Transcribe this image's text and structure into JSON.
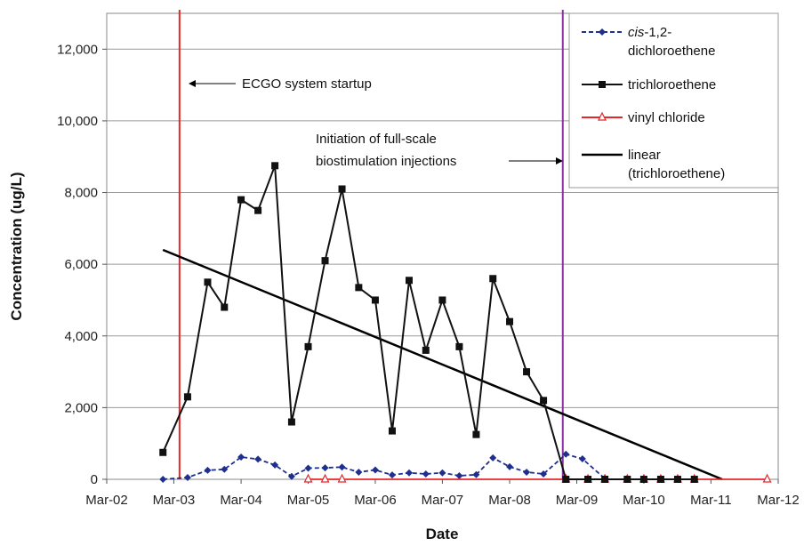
{
  "chart_data": {
    "type": "line",
    "xlabel": "Date",
    "ylabel": "Concentration (ug/L)",
    "ylim": [
      0,
      13000
    ],
    "y_ticks": [
      0,
      2000,
      4000,
      6000,
      8000,
      10000,
      12000
    ],
    "y_tick_labels": [
      "0",
      "2,000",
      "4,000",
      "6,000",
      "8,000",
      "10,000",
      "12,000"
    ],
    "xlim": [
      "2002-03-01",
      "2012-03-01"
    ],
    "x_tick_labels": [
      "Mar-02",
      "Mar-03",
      "Mar-04",
      "Mar-05",
      "Mar-06",
      "Mar-07",
      "Mar-08",
      "Mar-09",
      "Mar-10",
      "Mar-11",
      "Mar-12"
    ],
    "grid": "horizontal",
    "legend_position": "top-right",
    "series": [
      {
        "key": "dce",
        "name_prefix": "cis",
        "name_rest": "-1,2-",
        "name_line2": "dichloroethene",
        "color": "#1f2f8f",
        "line_style": "dashed",
        "marker": "diamond",
        "points": [
          [
            "2003-01-01",
            0
          ],
          [
            "2003-05-15",
            50
          ],
          [
            "2003-09-01",
            250
          ],
          [
            "2003-12-01",
            280
          ],
          [
            "2004-03-01",
            620
          ],
          [
            "2004-06-01",
            560
          ],
          [
            "2004-09-01",
            400
          ],
          [
            "2004-12-01",
            80
          ],
          [
            "2005-03-01",
            310
          ],
          [
            "2005-06-01",
            320
          ],
          [
            "2005-09-01",
            340
          ],
          [
            "2005-12-01",
            200
          ],
          [
            "2006-03-01",
            260
          ],
          [
            "2006-06-01",
            120
          ],
          [
            "2006-09-01",
            180
          ],
          [
            "2006-12-01",
            150
          ],
          [
            "2007-03-01",
            180
          ],
          [
            "2007-06-01",
            100
          ],
          [
            "2007-09-01",
            130
          ],
          [
            "2007-12-01",
            600
          ],
          [
            "2008-03-01",
            350
          ],
          [
            "2008-06-01",
            200
          ],
          [
            "2008-09-01",
            150
          ],
          [
            "2009-01-01",
            700
          ],
          [
            "2009-04-01",
            570
          ],
          [
            "2009-08-01",
            20
          ]
        ]
      },
      {
        "key": "tce",
        "name": "trichloroethene",
        "color": "#111111",
        "line_style": "solid",
        "marker": "square",
        "points": [
          [
            "2003-01-01",
            750
          ],
          [
            "2003-05-15",
            2300
          ],
          [
            "2003-09-01",
            5500
          ],
          [
            "2003-12-01",
            4800
          ],
          [
            "2004-03-01",
            7800
          ],
          [
            "2004-06-01",
            7500
          ],
          [
            "2004-09-01",
            8750
          ],
          [
            "2004-12-01",
            1600
          ],
          [
            "2005-03-01",
            3700
          ],
          [
            "2005-06-01",
            6100
          ],
          [
            "2005-09-01",
            8100
          ],
          [
            "2005-12-01",
            5350
          ],
          [
            "2006-03-01",
            5000
          ],
          [
            "2006-06-01",
            1350
          ],
          [
            "2006-09-01",
            5550
          ],
          [
            "2006-12-01",
            3600
          ],
          [
            "2007-03-01",
            5000
          ],
          [
            "2007-06-01",
            3700
          ],
          [
            "2007-09-01",
            1250
          ],
          [
            "2007-12-01",
            5600
          ],
          [
            "2008-03-01",
            4400
          ],
          [
            "2008-06-01",
            3000
          ],
          [
            "2008-09-01",
            2200
          ],
          [
            "2009-01-01",
            0
          ],
          [
            "2009-05-01",
            0
          ],
          [
            "2009-08-01",
            0
          ],
          [
            "2009-12-01",
            0
          ],
          [
            "2010-03-01",
            0
          ],
          [
            "2010-06-01",
            0
          ],
          [
            "2010-09-01",
            0
          ],
          [
            "2010-12-01",
            0
          ]
        ]
      },
      {
        "key": "vc",
        "name": "vinyl chloride",
        "color": "#e8262a",
        "line_style": "solid",
        "marker": "triangle",
        "points": [
          [
            "2005-03-01",
            0
          ],
          [
            "2005-06-01",
            0
          ],
          [
            "2005-09-01",
            0
          ],
          [
            "2009-01-01",
            0
          ],
          [
            "2009-05-01",
            0
          ],
          [
            "2009-08-01",
            0
          ],
          [
            "2009-12-01",
            0
          ],
          [
            "2010-03-01",
            0
          ],
          [
            "2010-06-01",
            0
          ],
          [
            "2010-09-01",
            0
          ],
          [
            "2010-12-01",
            0
          ],
          [
            "2012-01-01",
            0
          ]
        ]
      },
      {
        "key": "trend",
        "name": "linear",
        "name_line2": "(trichloroethene)",
        "color": "#000000",
        "line_style": "solid",
        "marker": "none",
        "points": [
          [
            "2003-01-01",
            6400
          ],
          [
            "2011-05-01",
            0
          ]
        ]
      }
    ],
    "vertical_lines": [
      {
        "x": "2003-04-01",
        "color": "#e8262a"
      },
      {
        "x": "2008-12-15",
        "color": "#8b2fa3"
      }
    ],
    "annotations": [
      {
        "text": "ECGO system startup"
      },
      {
        "text": "Initiation of full-scale"
      },
      {
        "text": "biostimulation injections"
      }
    ]
  }
}
